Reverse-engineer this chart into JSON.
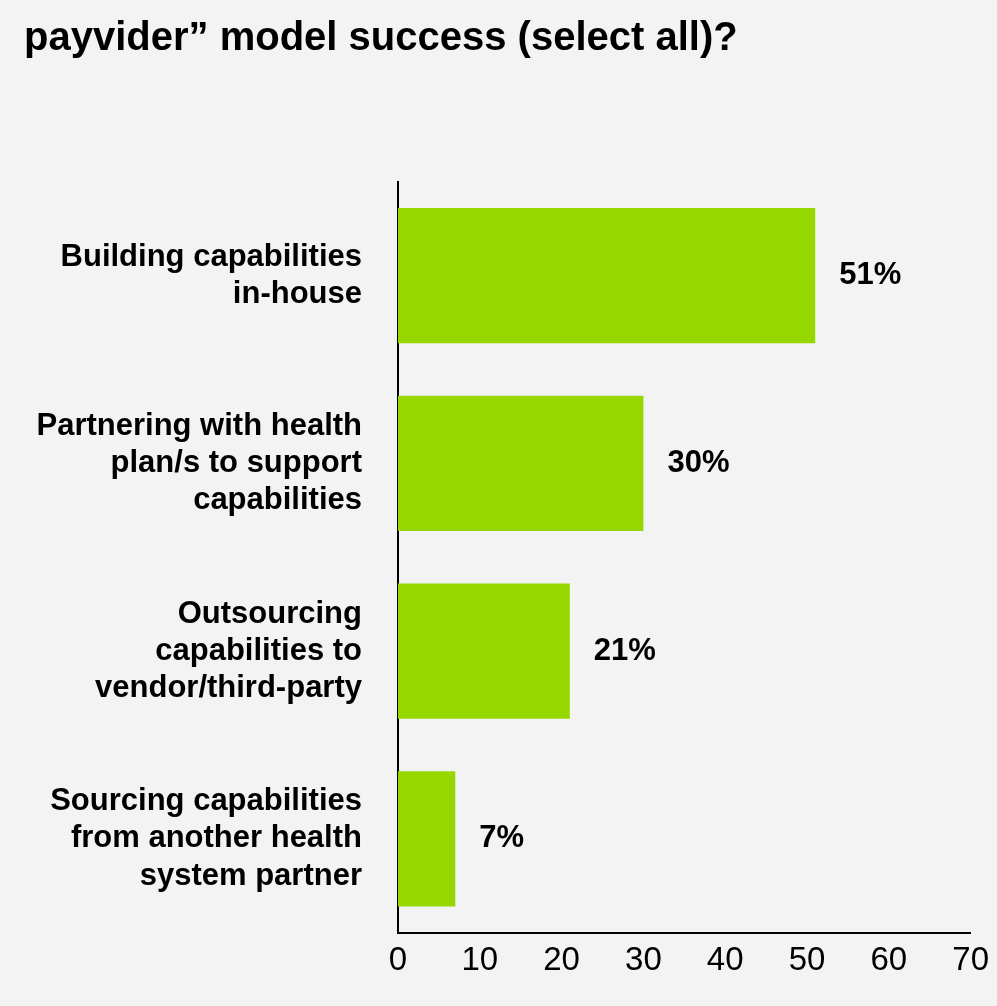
{
  "chart_data": {
    "type": "bar",
    "orientation": "horizontal",
    "title": "payvider” model success (select all)?",
    "categories": [
      "Building capabilities in-house",
      "Partnering with health plan/s to support capabilities",
      "Outsourcing capabilities to vendor/third-party",
      "Sourcing capabilities from another health system partner"
    ],
    "values": [
      51,
      30,
      21,
      7
    ],
    "color": "#96d700",
    "value_labels": [
      "51%",
      "30%",
      "21%",
      "7%"
    ],
    "xlim": [
      0,
      70
    ],
    "xticks": [
      0,
      10,
      20,
      30,
      40,
      50,
      60,
      70
    ],
    "grid": false,
    "legend": false
  }
}
